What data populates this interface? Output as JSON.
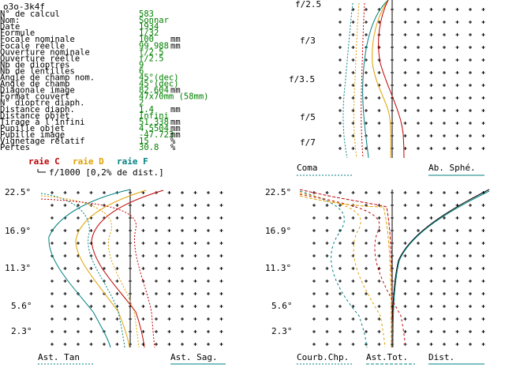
{
  "window_title": "o3o-3k4f",
  "colors": {
    "black": "#000000",
    "green": "#008000",
    "red": "#c00000",
    "orange": "#e0a000",
    "teal": "#008080"
  },
  "info": [
    {
      "label": "N° de calcul",
      "value": "583",
      "unit": ""
    },
    {
      "label": "Nom:",
      "value": "Sonnar",
      "unit": ""
    },
    {
      "label": "Date",
      "value": "1934",
      "unit": ""
    },
    {
      "label": "Formule",
      "value": "1/32",
      "unit": ""
    },
    {
      "label": "Focale nominale",
      "value": "100",
      "unit": "mm"
    },
    {
      "label": "Focale réelle",
      "value": "99.988",
      "unit": "mm"
    },
    {
      "label": "Ouverture nominale",
      "value": "f/2.5",
      "unit": ""
    },
    {
      "label": "Ouverture réelle",
      "value": "f/2.5",
      "unit": ""
    },
    {
      "label": "Nb de dioptres",
      "value": "9",
      "unit": ""
    },
    {
      "label": "Nb de lentilles",
      "value": "6",
      "unit": ""
    },
    {
      "label": "Angle de champ nom.",
      "value": "45°(dec)",
      "unit": ""
    },
    {
      "label": "Angle de champ",
      "value": "45°(dec)",
      "unit": ""
    },
    {
      "label": "Diagonale image",
      "value": "82.604",
      "unit": "mm"
    },
    {
      "label": "Format couvert",
      "value": "47x70mm (58mm)",
      "unit": ""
    },
    {
      "label": "N° dioptre diaph.",
      "value": "2",
      "unit": ""
    },
    {
      "label": "Distance diaph.",
      "value": "1.4",
      "unit": "mm"
    },
    {
      "label": "Distance objet",
      "value": "Infini",
      "unit": ""
    },
    {
      "label": "Tirage à l'infini",
      "value": "51.338",
      "unit": "mm"
    },
    {
      "label": "Pupille objet",
      "value": "4.5504",
      "unit": "mm"
    },
    {
      "label": "Pupille image",
      "value": "-47.723",
      "unit": "mm"
    },
    {
      "label": "Vignetage relatif",
      "value": "15",
      "unit": "%"
    },
    {
      "label": "Pertes",
      "value": "30.8",
      "unit": "%"
    }
  ],
  "legend": {
    "raie_c": "raie C",
    "raie_d": "raie D",
    "raie_f": "raie F",
    "scale_note": "f/1000 [0,2% de dist.]"
  },
  "top_chart": {
    "y_labels": [
      "f/2.5",
      "f/3",
      "f/3.5",
      "f/5",
      "f/7"
    ],
    "left_label": "Coma",
    "right_label": "Ab. Sphé."
  },
  "bottom_left_chart": {
    "y_labels": [
      "22.5°",
      "16.9°",
      "11.3°",
      "5.6°",
      "2.3°"
    ],
    "left_label": "Ast. Tan",
    "right_label": "Ast. Sag."
  },
  "bottom_right_chart": {
    "y_labels": [
      "22.5°",
      "16.9°",
      "11.3°",
      "5.6°",
      "2.3°"
    ],
    "label_1": "Courb.Chp.",
    "label_2": "Ast.Tot.",
    "label_3": "Dist."
  }
}
